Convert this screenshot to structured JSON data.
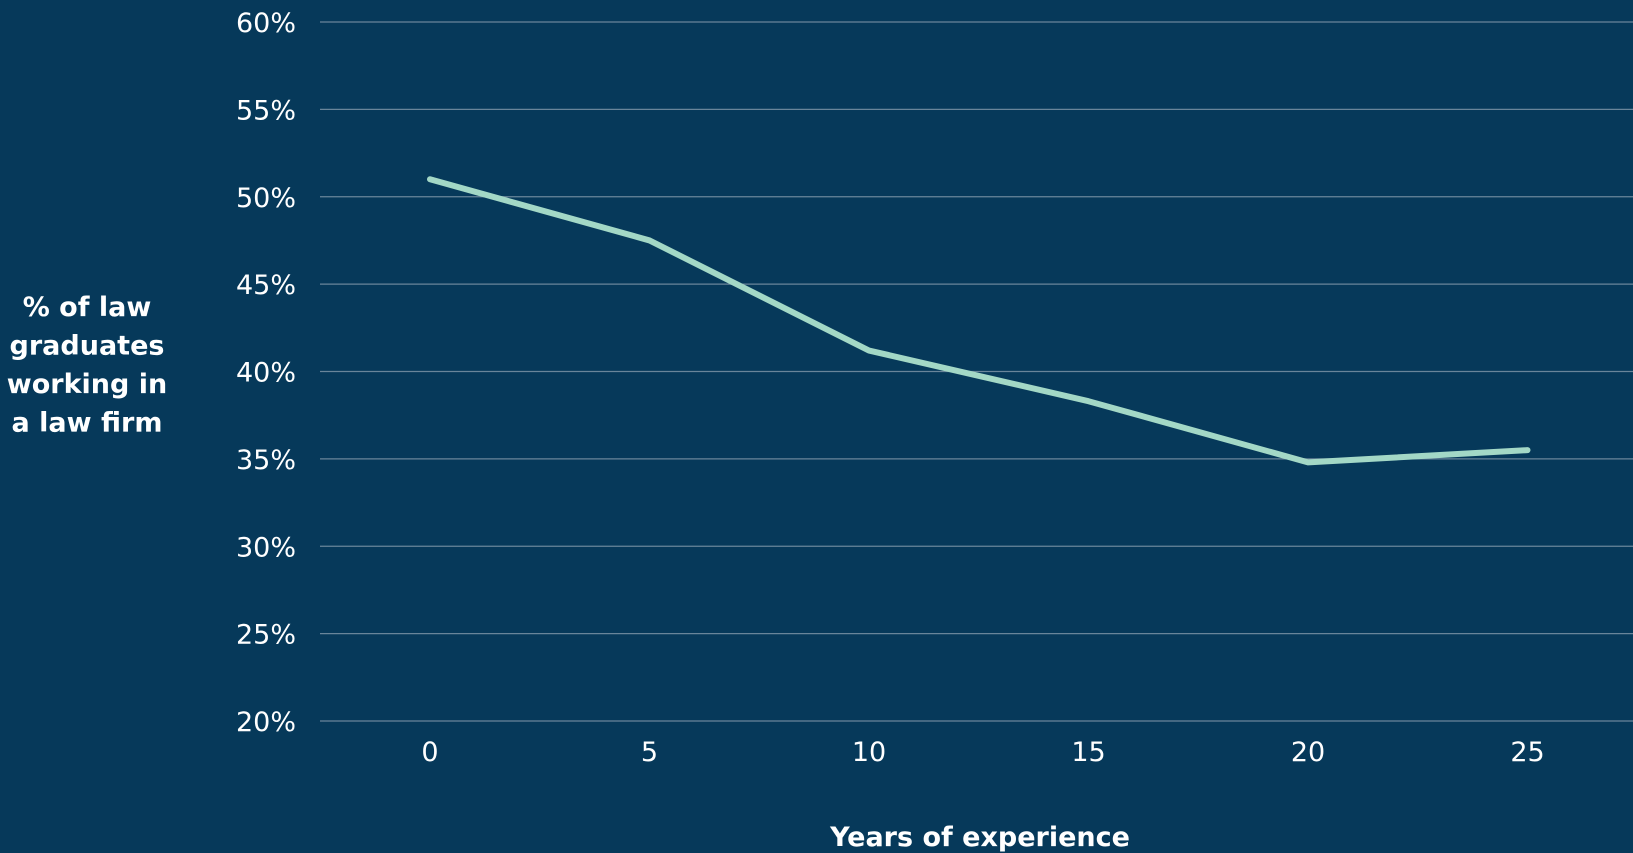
{
  "colors": {
    "background": "#06395a",
    "line": "#a3d8c6",
    "gridline": "#8a9fb0",
    "text": "#ffffff"
  },
  "chart_data": {
    "type": "line",
    "title": "",
    "xlabel": "Years of experience",
    "ylabel": "% of law graduates working in a law firm",
    "ylabel_lines": [
      "% of law",
      "graduates",
      "working in",
      "a law firm"
    ],
    "x": [
      0,
      5,
      10,
      15,
      20,
      25
    ],
    "x_tick_labels": [
      "0",
      "5",
      "10",
      "15",
      "20",
      "25"
    ],
    "y_ticks": [
      20,
      25,
      30,
      35,
      40,
      45,
      50,
      55,
      60
    ],
    "y_tick_labels": [
      "20%",
      "25%",
      "30%",
      "35%",
      "40%",
      "45%",
      "50%",
      "55%",
      "60%"
    ],
    "ylim": [
      20,
      60
    ],
    "xlim": [
      -2.5,
      27.5
    ],
    "grid": "horizontal",
    "legend": "none",
    "series": [
      {
        "values": [
          51.0,
          47.5,
          41.2,
          38.3,
          34.8,
          35.5
        ]
      }
    ]
  }
}
